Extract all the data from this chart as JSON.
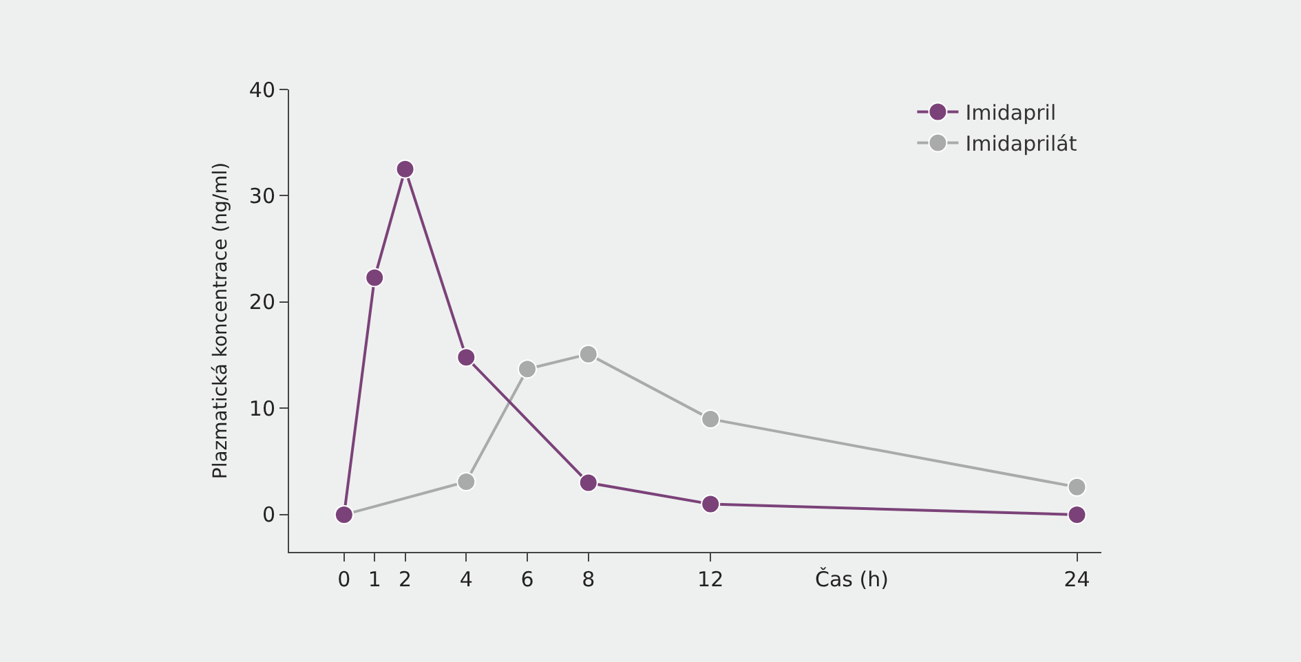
{
  "chart_data": {
    "type": "line",
    "xlabel": "Čas (h)",
    "ylabel": "Plazmatická koncentrace (ng/ml)",
    "xlim": [
      -1.8,
      24.8
    ],
    "xticks": [
      0,
      1,
      2,
      4,
      6,
      8,
      12,
      24
    ],
    "ylim": [
      -3.5,
      40
    ],
    "yticks": [
      0,
      10,
      20,
      30,
      40
    ],
    "grid": false,
    "legend": "top right",
    "marker": "circle",
    "line_style": "solid",
    "series": [
      {
        "name": "Imidapril",
        "color": "#7b4279",
        "x": [
          0,
          1,
          2,
          4,
          8,
          12,
          24
        ],
        "values": [
          0,
          22.3,
          32.5,
          14.8,
          3,
          1,
          0
        ]
      },
      {
        "name": "Imidaprilát",
        "color": "#a9abaa",
        "x": [
          0,
          4,
          6,
          8,
          12,
          24
        ],
        "values": [
          0,
          3.1,
          13.7,
          15.1,
          9,
          2.6
        ]
      }
    ]
  }
}
